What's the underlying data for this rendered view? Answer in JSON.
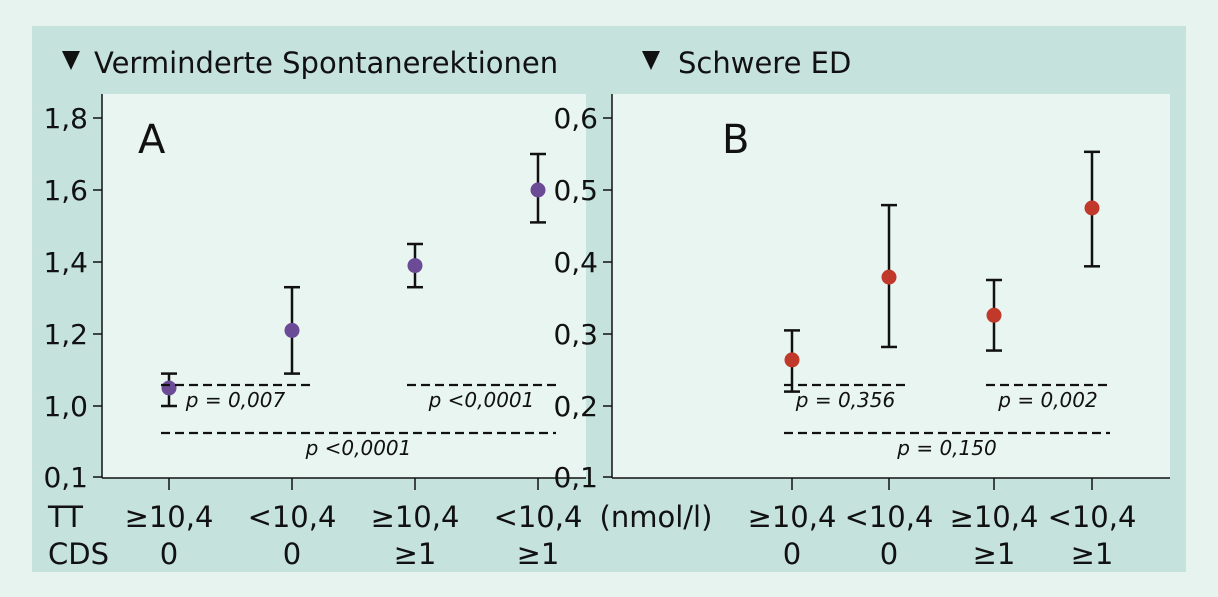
{
  "chart_data": [
    {
      "type": "scatter",
      "panel_letter": "A",
      "title": "Verminderte Spontanerektionen",
      "yticks": [
        "0,1",
        "1,0",
        "1,2",
        "1,4",
        "1,6",
        "1,8"
      ],
      "categories": [
        {
          "tt": "≥10,4",
          "cds": "0"
        },
        {
          "tt": "<10,4",
          "cds": "0"
        },
        {
          "tt": "≥10,4",
          "cds": "≥1"
        },
        {
          "tt": "<10,4",
          "cds": "≥1"
        }
      ],
      "values": [
        1.05,
        1.21,
        1.39,
        1.6
      ],
      "ci_low": [
        1.0,
        1.09,
        1.33,
        1.51
      ],
      "ci_high": [
        1.09,
        1.33,
        1.45,
        1.7
      ],
      "marker_color": "#6b4a96",
      "annotations": [
        {
          "text": "p = 0,007",
          "from": 1,
          "to": 2,
          "level": 1
        },
        {
          "text": "p <0,0001",
          "from": 3,
          "to": 4,
          "level": 1
        },
        {
          "text": "p <0,0001",
          "from": 1,
          "to": 4,
          "level": 2
        }
      ]
    },
    {
      "type": "scatter",
      "panel_letter": "B",
      "title": "Schwere ED",
      "yticks": [
        "0,1",
        "0,2",
        "0,3",
        "0,4",
        "0,5",
        "0,6"
      ],
      "categories": [
        {
          "tt": "≥10,4",
          "cds": "0"
        },
        {
          "tt": "<10,4",
          "cds": "0"
        },
        {
          "tt": "≥10,4",
          "cds": "≥1"
        },
        {
          "tt": "<10,4",
          "cds": "≥1"
        }
      ],
      "values": [
        0.264,
        0.379,
        0.326,
        0.475
      ],
      "ci_low": [
        0.22,
        0.282,
        0.277,
        0.394
      ],
      "ci_high": [
        0.305,
        0.479,
        0.375,
        0.553
      ],
      "marker_color": "#c0392b",
      "annotations": [
        {
          "text": "p = 0,356",
          "from": 1,
          "to": 2,
          "level": 1
        },
        {
          "text": "p = 0,002",
          "from": 3,
          "to": 4,
          "level": 1
        },
        {
          "text": "p = 0,150",
          "from": 1,
          "to": 4,
          "level": 2
        }
      ]
    }
  ],
  "row_labels": {
    "tt": "TT",
    "cds": "CDS",
    "unit": "(nmol/l)"
  },
  "colors": {
    "background": "#e6f3ef",
    "band": "#c5e2dc",
    "plot_area": "#e9f5f1",
    "ink": "#111111"
  }
}
